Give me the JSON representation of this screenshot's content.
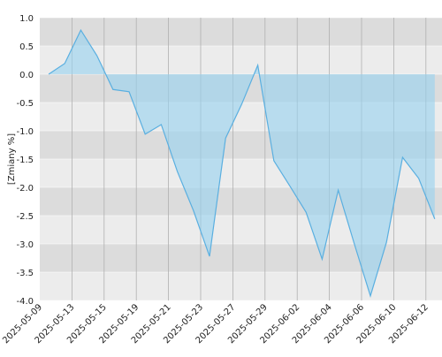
{
  "chart_data": {
    "type": "area",
    "y_label": "[Zmiany %]",
    "categories": [
      "2025-05-09",
      null,
      "2025-05-13",
      null,
      "2025-05-15",
      null,
      "2025-05-19",
      null,
      "2025-05-21",
      null,
      "2025-05-23",
      null,
      "2025-05-27",
      null,
      "2025-05-29",
      null,
      "2025-06-02",
      null,
      "2025-06-04",
      null,
      "2025-06-06",
      null,
      "2025-06-10",
      null,
      "2025-06-12"
    ],
    "series": [
      {
        "color": "#5aafe0",
        "values": [
          0,
          0.19,
          0.78,
          0.33,
          -0.27,
          -0.31,
          -1.06,
          -0.89,
          -1.72,
          -2.41,
          -3.22,
          -1.13,
          -0.53,
          0.16,
          -1.53,
          -1.98,
          -2.44,
          -3.27,
          -2.05,
          -3.0,
          -3.92,
          -2.97,
          -1.47,
          -1.84,
          -2.56
        ]
      }
    ],
    "ylim": [
      -4.0,
      1.0
    ],
    "yticks": [
      {
        "value": 1.0,
        "label": "1.0"
      },
      0.5,
      {
        "value": 0,
        "label": "0.0"
      },
      -0.5,
      {
        "value": -1.0,
        "label": "-1.0"
      },
      -1.5,
      {
        "value": -2.0,
        "label": "-2.0"
      },
      -2.5,
      {
        "value": -3.0,
        "label": "-3.0"
      },
      -3.5,
      {
        "value": -4.0,
        "label": "-4.0"
      }
    ],
    "grid": true
  }
}
